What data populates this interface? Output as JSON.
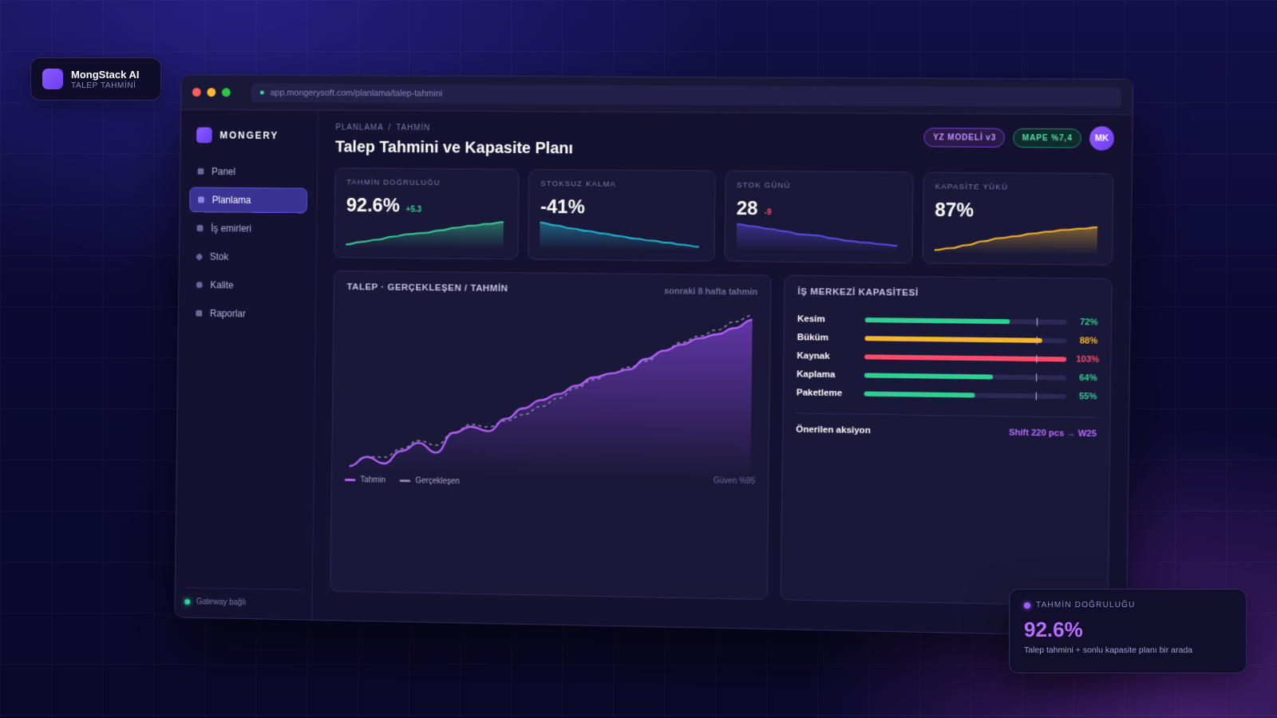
{
  "brand_badge": {
    "name": "MongStack AI",
    "subtitle": "TALEP TAHMİNİ"
  },
  "browser": {
    "url": "app.mongerysoft.com/planlama/talep-tahmini"
  },
  "sidebar": {
    "brand": "MONGERY",
    "items": [
      {
        "label": "Panel",
        "icon": "grid-icon"
      },
      {
        "label": "Planlama",
        "icon": "calendar-icon",
        "active": true
      },
      {
        "label": "İş emirleri",
        "icon": "list-icon"
      },
      {
        "label": "Stok",
        "icon": "box-icon"
      },
      {
        "label": "Kalite",
        "icon": "check-circle-icon"
      },
      {
        "label": "Raporlar",
        "icon": "report-icon"
      }
    ],
    "footer_status": "Gateway bağlı"
  },
  "header": {
    "breadcrumb": [
      "PLANLAMA",
      "/",
      "TAHMİN"
    ],
    "title": "Talep Tahmini ve Kapasite Planı",
    "model_badge": "YZ MODELİ v3",
    "mape_badge": "MAPE %7,4",
    "avatar_initials": "MK"
  },
  "kpis": [
    {
      "label": "TAHMİN DOĞRULUĞU",
      "value": "92.6%",
      "delta": "+5.3",
      "trend": "up",
      "color": "#3ad39b",
      "spark": [
        0,
        12,
        22,
        35,
        46,
        52,
        63,
        75,
        84,
        92,
        100
      ]
    },
    {
      "label": "STOKSUZ KALMA",
      "value": "-41%",
      "delta": "",
      "trend": "down",
      "color": "#24b8d6",
      "spark": [
        100,
        88,
        76,
        66,
        56,
        46,
        36,
        28,
        20,
        12,
        4
      ]
    },
    {
      "label": "STOK GÜNÜ",
      "value": "28",
      "delta": "-9",
      "trend": "down",
      "color": "#5b4de8",
      "spark": [
        100,
        92,
        82,
        72,
        60,
        56,
        44,
        34,
        28,
        22,
        16
      ]
    },
    {
      "label": "KAPASİTE YÜKÜ",
      "value": "87%",
      "delta": "",
      "trend": "up",
      "color": "#f5b52e",
      "spark": [
        0,
        8,
        22,
        38,
        52,
        60,
        72,
        80,
        88,
        94,
        100
      ]
    }
  ],
  "chart_data": {
    "type": "line",
    "title": "TALEP · GERÇEKLEŞEN / TAHMİN",
    "subtitle": "sonraki 8 hafta tahmin",
    "x": [
      1,
      2,
      3,
      4,
      5,
      6,
      7,
      8,
      9,
      10,
      11,
      12,
      13,
      14,
      15,
      16,
      17,
      18,
      19,
      20,
      21,
      22,
      23,
      24
    ],
    "series": [
      {
        "name": "Tahmin",
        "color": "#b561ff",
        "values": [
          5,
          14,
          8,
          20,
          28,
          19,
          38,
          44,
          40,
          52,
          62,
          70,
          76,
          84,
          92,
          96,
          100,
          110,
          118,
          124,
          130,
          134,
          140,
          148
        ]
      },
      {
        "name": "Gerçekleşen",
        "color": "#8d89a8",
        "dashed": true,
        "values": [
          5,
          14,
          14,
          22,
          30,
          26,
          38,
          46,
          44,
          50,
          56,
          64,
          72,
          82,
          90,
          96,
          102,
          108,
          118,
          126,
          132,
          138,
          146,
          152
        ]
      }
    ],
    "confidence_label": "Güven %95"
  },
  "capacity": {
    "title": "İŞ MERKEZİ KAPASİTESİ",
    "rows": [
      {
        "name": "Kesim",
        "pct": 72,
        "label": "72%",
        "color": "#2fcf93",
        "limit": 85
      },
      {
        "name": "Büküm",
        "pct": 88,
        "label": "88%",
        "color": "#f5b52e",
        "limit": 85
      },
      {
        "name": "Kaynak",
        "pct": 100,
        "label": "103%",
        "color": "#ff4a6a",
        "limit": 85
      },
      {
        "name": "Kaplama",
        "pct": 64,
        "label": "64%",
        "color": "#2fcf93",
        "limit": 85
      },
      {
        "name": "Paketleme",
        "pct": 55,
        "label": "55%",
        "color": "#2fcf93",
        "limit": 85
      }
    ],
    "action_label": "Önerilen aksiyon",
    "action_value": "Shift 220 pcs → W25"
  },
  "callout": {
    "label": "TAHMİN DOĞRULUĞU",
    "value": "92.6%",
    "description": "Talep tahmini + sonlu kapasite planı bir arada"
  }
}
